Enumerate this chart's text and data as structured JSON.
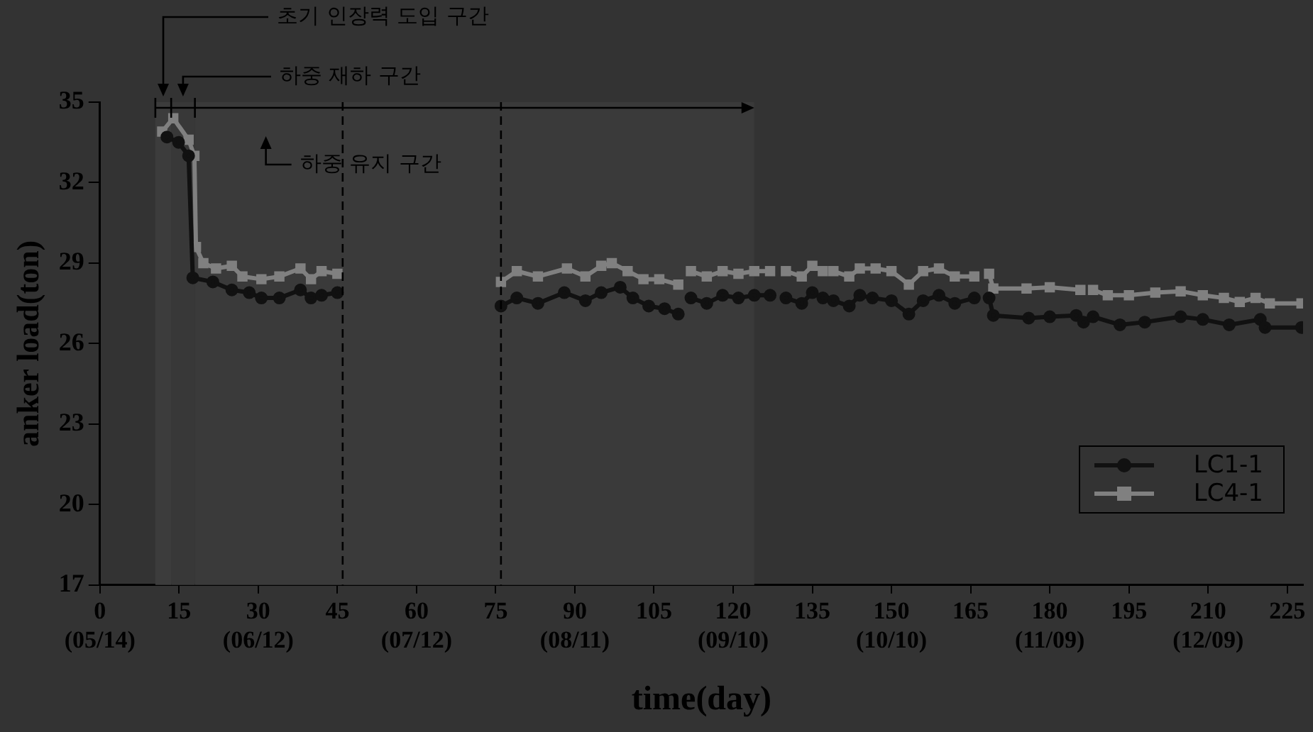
{
  "chart_data": {
    "type": "line",
    "xlabel": "time(day)",
    "ylabel": "anker load(ton)",
    "xlim": [
      0,
      228
    ],
    "ylim": [
      17,
      35
    ],
    "xticks": [
      {
        "value": 0,
        "label": "0\n(05/14)"
      },
      15,
      {
        "value": 30,
        "label": "30\n(06/12)"
      },
      45,
      {
        "value": 60,
        "label": "60\n(07/12)"
      },
      75,
      {
        "value": 90,
        "label": "90\n(08/11)"
      },
      105,
      {
        "value": 120,
        "label": "120\n(09/10)"
      },
      135,
      {
        "value": 150,
        "label": "150\n(10/10)"
      },
      165,
      {
        "value": 180,
        "label": "180\n(11/09)"
      },
      195,
      {
        "value": 210,
        "label": "210\n(12/09)"
      },
      225
    ],
    "yticks": [
      17,
      20,
      23,
      26,
      29,
      32,
      35
    ],
    "grid": false,
    "legend": "bottom right",
    "line_style": "solid",
    "series": [
      {
        "name": "LC1-1",
        "color": "#111111",
        "marker": "circle",
        "x": [
          12.7,
          14.9,
          16.8,
          17.6,
          21.4,
          25,
          28.3,
          30.6,
          34,
          38,
          40,
          42,
          45,
          60,
          76,
          79,
          83,
          88,
          92,
          95,
          98.6,
          101,
          104,
          107,
          109.6,
          111,
          112,
          115,
          118,
          121,
          124,
          127,
          128.5,
          130,
          133,
          135,
          137,
          138,
          139,
          142,
          144,
          146.4,
          150,
          153.3,
          156,
          159,
          162,
          165.7,
          167,
          168.5,
          169.3,
          176,
          180,
          185,
          186.4,
          187,
          188.2,
          193.3,
          198,
          204.8,
          209,
          214,
          219.9,
          220.8,
          227.7
        ],
        "values": [
          33.7,
          33.5,
          33.0,
          28.45,
          28.3,
          28.0,
          27.9,
          27.7,
          27.7,
          28.0,
          27.7,
          27.8,
          27.9,
          null,
          27.4,
          27.7,
          27.5,
          27.9,
          27.6,
          27.9,
          28.1,
          27.7,
          27.4,
          27.3,
          27.1,
          null,
          27.7,
          27.5,
          27.8,
          27.7,
          27.8,
          27.8,
          null,
          27.7,
          27.5,
          27.9,
          27.7,
          null,
          27.6,
          27.4,
          27.8,
          27.7,
          27.6,
          27.1,
          27.6,
          27.8,
          27.5,
          27.7,
          null,
          27.7,
          27.05,
          26.95,
          27.0,
          27.05,
          26.8,
          null,
          27.0,
          26.7,
          26.8,
          27.0,
          26.9,
          26.7,
          26.9,
          26.6,
          26.6
        ]
      },
      {
        "name": "LC4-1",
        "color": "#808080",
        "marker": "square",
        "x": [
          11.8,
          13.9,
          16.8,
          17.9,
          18.2,
          19.6,
          22,
          25,
          27,
          30.6,
          34,
          38,
          40,
          42,
          45,
          60,
          76,
          79,
          83,
          88.5,
          92,
          95,
          97,
          100,
          103,
          106,
          109.6,
          111,
          112,
          115,
          118,
          121,
          124,
          127,
          128.5,
          130,
          133,
          135,
          137,
          138,
          139,
          142,
          144,
          147,
          150,
          153.3,
          156,
          159,
          162,
          165.7,
          167,
          168.5,
          169.3,
          175.6,
          180,
          185.8,
          187,
          188.2,
          191,
          195,
          200,
          204.8,
          209,
          213,
          216,
          219,
          221.7,
          227.7
        ],
        "values": [
          33.9,
          34.4,
          33.6,
          33.0,
          29.6,
          29.0,
          28.8,
          28.9,
          28.5,
          28.4,
          28.5,
          28.8,
          28.4,
          28.7,
          28.6,
          null,
          28.3,
          28.7,
          28.5,
          28.8,
          28.5,
          28.9,
          29.0,
          28.7,
          28.4,
          28.4,
          28.2,
          null,
          28.7,
          28.5,
          28.7,
          28.6,
          28.7,
          28.7,
          null,
          28.7,
          28.5,
          28.9,
          28.7,
          null,
          28.7,
          28.5,
          28.8,
          28.8,
          28.7,
          28.2,
          28.7,
          28.8,
          28.5,
          28.5,
          null,
          28.6,
          28.05,
          28.05,
          28.1,
          28.0,
          null,
          28.0,
          27.8,
          27.8,
          27.9,
          27.95,
          27.8,
          27.7,
          27.55,
          27.7,
          27.5,
          27.5
        ]
      }
    ],
    "ref_lines": [
      {
        "axis": "x",
        "value": 46,
        "line_style": "dashed"
      },
      {
        "axis": "x",
        "value": 76,
        "line_style": "dashed"
      }
    ],
    "bands": [
      {
        "axis": "x",
        "from": 10.5,
        "to": 13.5,
        "label": "초기 인장력 도입 구간",
        "color": "#3c3c3c"
      },
      {
        "axis": "x",
        "from": 13.5,
        "to": 18,
        "label": "하중 재하 구간",
        "color": "#383838"
      },
      {
        "axis": "x",
        "from": 18,
        "to": 124,
        "label": "하중 유지 구간",
        "color": "#3a3a3a"
      }
    ]
  }
}
